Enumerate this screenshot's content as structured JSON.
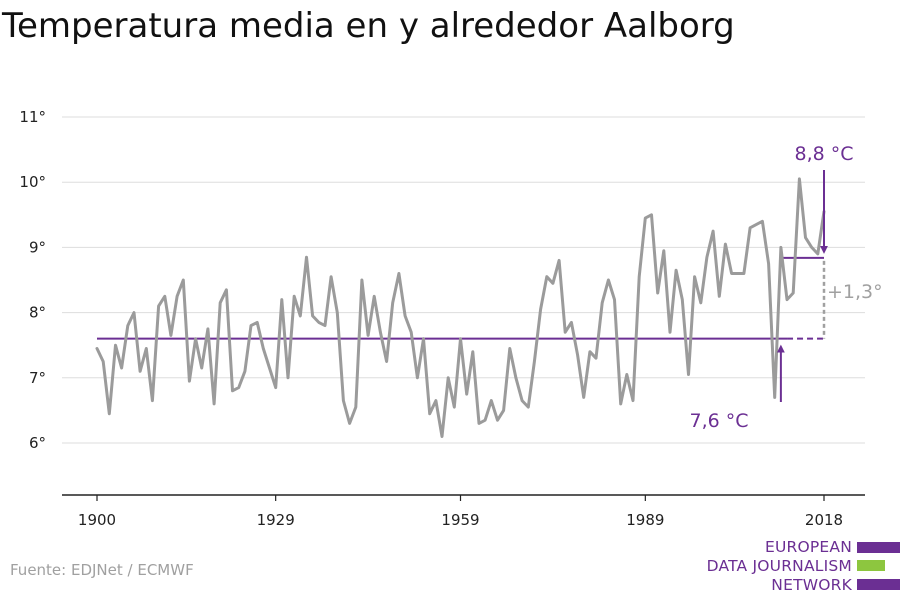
{
  "title": "Temperatura media en y alrededor Aalborg",
  "source": "Fuente: EDJNet / ECMWF",
  "logo": {
    "lines": [
      "EUROPEAN",
      "DATA JOURNALISM",
      "NETWORK"
    ],
    "colors": [
      "#6b2f93",
      "#8dc63f",
      "#6b2f93"
    ]
  },
  "colors": {
    "series": "#9b9b9b",
    "accent": "#6b2f93",
    "diff": "#a0a0a0",
    "grid": "#dddddd",
    "axis": "#222222"
  },
  "chart_data": {
    "type": "line",
    "title": "Temperatura media en y alrededor Aalborg",
    "xlabel": "",
    "ylabel": "",
    "xlim": [
      1894,
      2030
    ],
    "ylim": [
      5.2,
      11.5
    ],
    "grid": true,
    "x_ticks": [
      1900,
      1929,
      1959,
      1989,
      2018
    ],
    "y_ticks": [
      6,
      7,
      8,
      9,
      10,
      11
    ],
    "y_tick_labels": [
      "6°",
      "7°",
      "8°",
      "9°",
      "10°",
      "11°"
    ],
    "x": [
      1900,
      1901,
      1902,
      1903,
      1904,
      1905,
      1906,
      1907,
      1908,
      1909,
      1910,
      1911,
      1912,
      1913,
      1914,
      1915,
      1916,
      1917,
      1918,
      1919,
      1920,
      1921,
      1922,
      1923,
      1924,
      1925,
      1926,
      1927,
      1928,
      1929,
      1930,
      1931,
      1932,
      1933,
      1934,
      1935,
      1936,
      1937,
      1938,
      1939,
      1940,
      1941,
      1942,
      1943,
      1944,
      1945,
      1946,
      1947,
      1948,
      1949,
      1950,
      1951,
      1952,
      1953,
      1954,
      1955,
      1956,
      1957,
      1958,
      1959,
      1960,
      1961,
      1962,
      1963,
      1964,
      1965,
      1966,
      1967,
      1968,
      1969,
      1970,
      1971,
      1972,
      1973,
      1974,
      1975,
      1976,
      1977,
      1978,
      1979,
      1980,
      1981,
      1982,
      1983,
      1984,
      1985,
      1986,
      1987,
      1988,
      1989,
      1990,
      1991,
      1992,
      1993,
      1994,
      1995,
      1996,
      1997,
      1998,
      1999,
      2000,
      2001,
      2002,
      2003,
      2004,
      2005,
      2006,
      2007,
      2008,
      2009,
      2010,
      2011,
      2012,
      2013,
      2014,
      2015,
      2016,
      2017,
      2018,
      2019
    ],
    "series": [
      {
        "values": [
          7.45,
          7.25,
          6.45,
          7.5,
          7.15,
          7.8,
          8.0,
          7.1,
          7.45,
          6.65,
          8.1,
          8.25,
          7.65,
          8.25,
          8.5,
          6.95,
          7.6,
          7.15,
          7.75,
          6.6,
          8.15,
          8.35,
          6.8,
          6.85,
          7.1,
          7.8,
          7.85,
          7.45,
          7.15,
          6.85,
          8.2,
          7.0,
          8.25,
          7.95,
          8.85,
          7.95,
          7.85,
          7.8,
          8.55,
          8.0,
          6.65,
          6.3,
          6.55,
          8.5,
          7.65,
          8.25,
          7.7,
          7.25,
          8.15,
          8.6,
          7.95,
          7.7,
          7.0,
          7.6,
          6.45,
          6.65,
          6.1,
          7.0,
          6.55,
          7.6,
          6.75,
          7.4,
          6.3,
          6.35,
          6.65,
          6.35,
          6.5,
          7.45,
          7.0,
          6.65,
          6.55,
          7.25,
          8.05,
          8.55,
          8.45,
          8.8,
          7.7,
          7.85,
          7.35,
          6.7,
          7.4,
          7.3,
          8.15,
          8.5,
          8.2,
          6.6,
          7.05,
          6.65,
          8.55,
          9.45,
          9.5,
          8.3,
          8.95,
          7.7,
          8.65,
          8.2,
          7.05,
          8.55,
          8.15,
          8.85,
          9.25,
          8.25,
          9.05,
          8.6,
          8.6,
          8.6,
          9.3,
          9.35,
          9.4,
          8.75,
          6.7,
          9.0,
          8.2,
          8.3,
          10.05,
          9.15,
          9.0,
          8.9,
          9.55,
          null
        ]
      }
    ],
    "reference_lines": [
      {
        "label": "7,6 °C",
        "value": 7.6,
        "from": 1900,
        "to": 2012,
        "dashed_to": 2018
      },
      {
        "label": "8,8 °C",
        "value": 8.84,
        "from": 2011,
        "to": 2018
      }
    ],
    "difference_label": "+1,3°"
  }
}
